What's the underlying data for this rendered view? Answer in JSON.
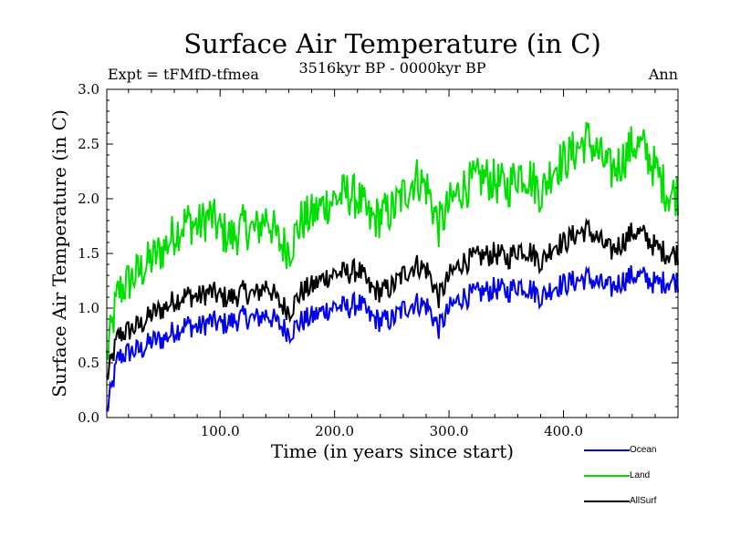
{
  "chart_data": {
    "type": "line",
    "title": "Surface Air Temperature (in C)",
    "subtitle": "3516kyr BP - 0000kyr BP",
    "experiment_label": "Expt = tFMfD-tfmea",
    "period_label": "Ann",
    "xlabel": "Time (in years since start)",
    "ylabel": "Surface Air Temperature (in C)",
    "xlim": [
      1,
      500
    ],
    "ylim": [
      0.0,
      3.0
    ],
    "x_ticks": [
      100,
      200,
      300,
      400
    ],
    "x_tick_labels": [
      "100.0",
      "200.0",
      "300.0",
      "400.0"
    ],
    "y_ticks": [
      0,
      0.5,
      1.0,
      1.5,
      2.0,
      2.5,
      3.0
    ],
    "y_tick_labels": [
      "0.0",
      "0.5",
      "1.0",
      "1.5",
      "2.0",
      "2.5",
      "3.0"
    ],
    "legend": "bottom-right",
    "x_sample_step": 10,
    "x_start": 1,
    "series": [
      {
        "name": "Ocean",
        "color": "#0000ee",
        "values": [
          0.05,
          0.55,
          0.6,
          0.62,
          0.7,
          0.72,
          0.8,
          0.85,
          0.82,
          0.88,
          0.85,
          0.88,
          0.92,
          0.9,
          0.95,
          0.85,
          0.78,
          0.88,
          0.92,
          0.98,
          1.02,
          1.0,
          1.05,
          0.92,
          0.88,
          0.9,
          1.0,
          1.05,
          1.02,
          0.82,
          1.0,
          1.1,
          1.12,
          1.15,
          1.18,
          1.15,
          1.22,
          1.18,
          1.1,
          1.2,
          1.22,
          1.25,
          1.28,
          1.22,
          1.18,
          1.25,
          1.3,
          1.28,
          1.22,
          1.25
        ]
      },
      {
        "name": "Land",
        "color": "#00e000",
        "values": [
          0.55,
          1.15,
          1.25,
          1.35,
          1.45,
          1.55,
          1.7,
          1.8,
          1.75,
          1.85,
          1.7,
          1.65,
          1.75,
          1.7,
          1.85,
          1.6,
          1.55,
          1.8,
          1.85,
          1.95,
          2.0,
          2.05,
          2.0,
          1.8,
          1.85,
          1.9,
          2.05,
          2.2,
          2.1,
          1.75,
          1.95,
          2.1,
          2.15,
          2.2,
          2.15,
          2.1,
          2.25,
          2.2,
          2.05,
          2.3,
          2.35,
          2.45,
          2.55,
          2.4,
          2.25,
          2.35,
          2.5,
          2.45,
          2.25,
          2.05
        ]
      },
      {
        "name": "AllSurf",
        "color": "#000000",
        "values": [
          0.35,
          0.75,
          0.8,
          0.85,
          0.95,
          1.0,
          1.08,
          1.12,
          1.1,
          1.15,
          1.1,
          1.1,
          1.15,
          1.12,
          1.22,
          1.05,
          0.98,
          1.15,
          1.2,
          1.28,
          1.32,
          1.32,
          1.35,
          1.18,
          1.15,
          1.2,
          1.32,
          1.4,
          1.35,
          1.1,
          1.3,
          1.42,
          1.45,
          1.48,
          1.5,
          1.45,
          1.55,
          1.52,
          1.42,
          1.58,
          1.6,
          1.68,
          1.72,
          1.62,
          1.52,
          1.6,
          1.7,
          1.66,
          1.55,
          1.5
        ]
      }
    ]
  }
}
